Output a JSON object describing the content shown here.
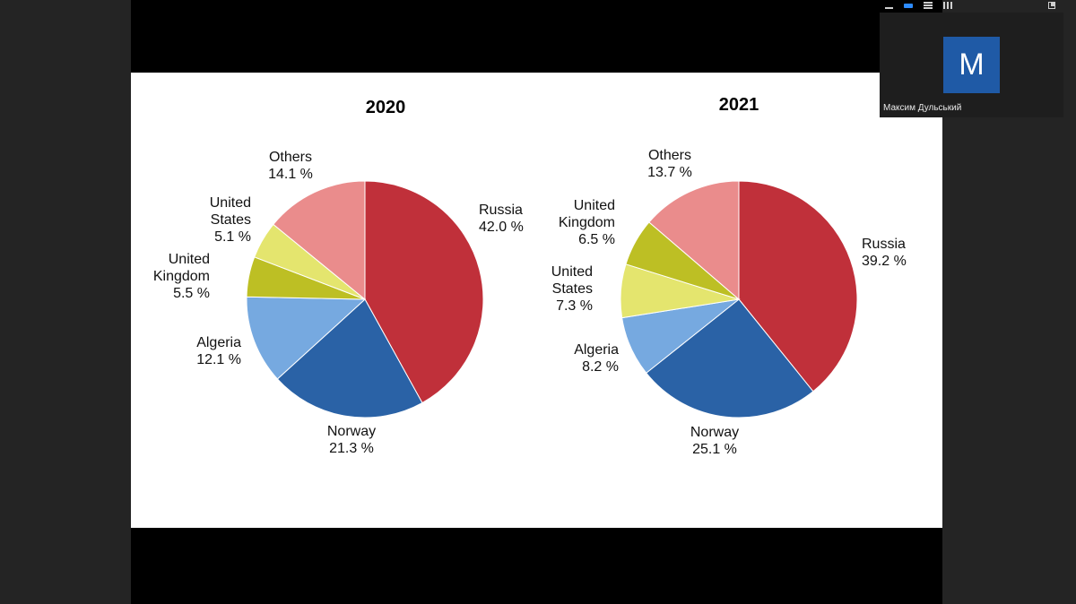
{
  "meeting": {
    "participant_name": "Максим Дульський",
    "avatar_initial": "M",
    "colors": {
      "avatar_bg": "#1f5aa6",
      "tile_bg": "#1e1e1e",
      "window_bg": "#242424"
    },
    "toolbar_icons": [
      "minimize-icon",
      "speaker-view-icon",
      "strip-view-icon",
      "gallery-view-icon",
      "expand-icon"
    ]
  },
  "chart_data": [
    {
      "type": "pie",
      "title": "2020",
      "series": [
        {
          "label": "Russia",
          "value": 42.0,
          "text": "42.0 %",
          "color": "#c0303a"
        },
        {
          "label": "Norway",
          "value": 21.3,
          "text": "21.3 %",
          "color": "#2a62a6"
        },
        {
          "label": "Algeria",
          "value": 12.1,
          "text": "12.1 %",
          "color": "#76a9e0"
        },
        {
          "label": "United Kingdom",
          "value": 5.5,
          "text": "5.5 %",
          "color": "#bdbf24"
        },
        {
          "label": "United States",
          "value": 5.1,
          "text": "5.1 %",
          "color": "#e4e56e"
        },
        {
          "label": "Others",
          "value": 14.1,
          "text": "14.1 %",
          "color": "#ea8c8c"
        }
      ]
    },
    {
      "type": "pie",
      "title": "2021",
      "series": [
        {
          "label": "Russia",
          "value": 39.2,
          "text": "39.2 %",
          "color": "#c0303a"
        },
        {
          "label": "Norway",
          "value": 25.1,
          "text": "25.1 %",
          "color": "#2a62a6"
        },
        {
          "label": "Algeria",
          "value": 8.2,
          "text": "8.2 %",
          "color": "#76a9e0"
        },
        {
          "label": "United States",
          "value": 7.3,
          "text": "7.3 %",
          "color": "#e4e56e"
        },
        {
          "label": "United Kingdom",
          "value": 6.5,
          "text": "6.5 %",
          "color": "#bdbf24"
        },
        {
          "label": "Others",
          "value": 13.7,
          "text": "13.7 %",
          "color": "#ea8c8c"
        }
      ]
    }
  ]
}
